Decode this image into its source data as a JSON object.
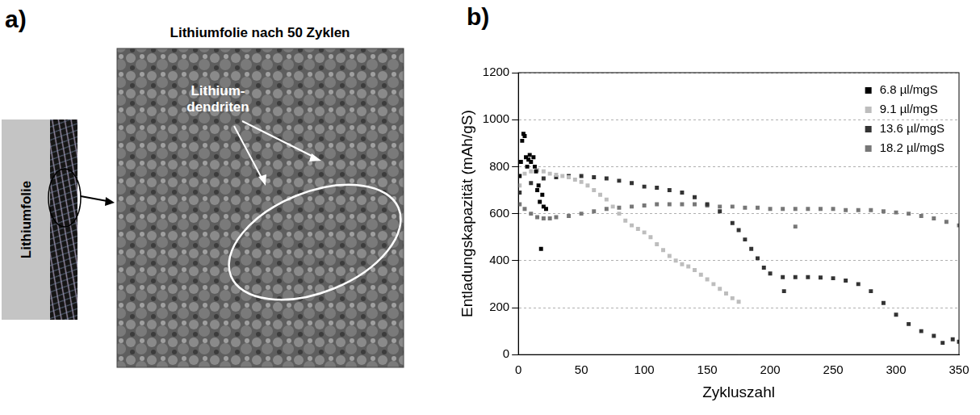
{
  "panel_a": {
    "label": "a)",
    "title": "Lithiumfolie nach 50 Zyklen",
    "side_label": "Lithiumfolie",
    "annotation": "Lithium-dendriten"
  },
  "chart_data": {
    "type": "scatter",
    "panel_label": "b)",
    "x_label": "Zykluszahl",
    "y_label": "Entladungskapazität (mAh/gS)",
    "xlim": [
      0,
      350
    ],
    "xticks": [
      0,
      50,
      100,
      150,
      200,
      250,
      300,
      350
    ],
    "ylim": [
      0,
      1200
    ],
    "yticks": [
      0,
      200,
      400,
      600,
      800,
      1000,
      1200
    ],
    "grid": true,
    "legend": "upper right",
    "marker": "square",
    "series": [
      {
        "name": "6.8 µl/mgS",
        "color": "#000000",
        "x": [
          1,
          2,
          3,
          4,
          5,
          6,
          7,
          8,
          9,
          10,
          12,
          13,
          14,
          15,
          16,
          17,
          18,
          19,
          20,
          22
        ],
        "values": [
          760,
          820,
          910,
          940,
          930,
          840,
          800,
          830,
          850,
          820,
          840,
          800,
          780,
          700,
          720,
          650,
          450,
          680,
          630,
          620
        ]
      },
      {
        "name": "9.1 µl/mgS",
        "color": "#bdbdbd",
        "x": [
          1,
          5,
          10,
          15,
          20,
          25,
          30,
          35,
          40,
          45,
          50,
          55,
          60,
          65,
          70,
          75,
          80,
          85,
          90,
          95,
          100,
          105,
          110,
          115,
          120,
          125,
          130,
          135,
          140,
          145,
          150,
          155,
          160,
          165,
          170,
          175
        ],
        "values": [
          720,
          770,
          780,
          785,
          780,
          770,
          765,
          760,
          755,
          745,
          735,
          720,
          700,
          680,
          660,
          630,
          600,
          570,
          550,
          535,
          520,
          500,
          470,
          445,
          420,
          400,
          385,
          375,
          360,
          340,
          320,
          300,
          280,
          260,
          240,
          225
        ]
      },
      {
        "name": "13.6 µl/mgS",
        "color": "#333333",
        "x": [
          1,
          10,
          20,
          30,
          40,
          50,
          60,
          70,
          80,
          90,
          100,
          110,
          120,
          130,
          140,
          150,
          160,
          170,
          175,
          180,
          185,
          190,
          195,
          200,
          210,
          220,
          230,
          240,
          250,
          260,
          270,
          280,
          290,
          300,
          310,
          320,
          330,
          337,
          345,
          350,
          211
        ],
        "values": [
          690,
          730,
          750,
          755,
          760,
          760,
          755,
          750,
          740,
          730,
          715,
          710,
          700,
          690,
          670,
          640,
          610,
          560,
          530,
          490,
          450,
          410,
          370,
          345,
          330,
          330,
          330,
          328,
          325,
          315,
          300,
          270,
          220,
          170,
          130,
          100,
          80,
          50,
          65,
          55,
          270
        ]
      },
      {
        "name": "18.2 µl/mgS",
        "color": "#777777",
        "x": [
          1,
          5,
          10,
          15,
          20,
          25,
          30,
          40,
          50,
          60,
          70,
          80,
          90,
          100,
          110,
          120,
          130,
          140,
          150,
          160,
          170,
          180,
          190,
          200,
          210,
          220,
          230,
          240,
          250,
          260,
          270,
          280,
          290,
          300,
          310,
          320,
          330,
          340,
          350,
          220
        ],
        "values": [
          640,
          620,
          600,
          585,
          580,
          580,
          585,
          590,
          600,
          610,
          620,
          625,
          630,
          635,
          640,
          640,
          640,
          640,
          635,
          630,
          630,
          625,
          625,
          620,
          620,
          620,
          620,
          620,
          620,
          615,
          615,
          615,
          610,
          605,
          600,
          590,
          580,
          565,
          550,
          545
        ]
      }
    ]
  }
}
